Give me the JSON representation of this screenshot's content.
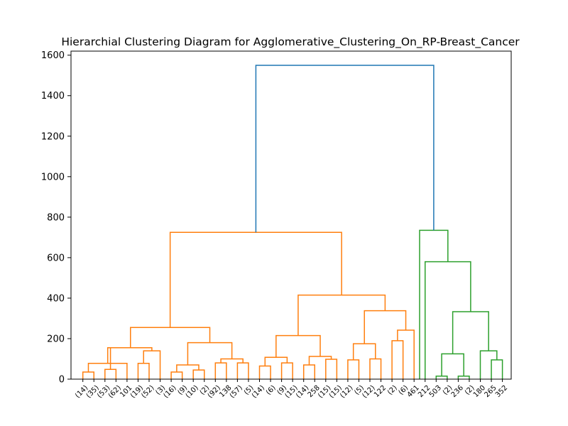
{
  "chart_data": {
    "type": "dendrogram",
    "title": "Hierarchial Clustering Diagram for Agglomerative_Clustering_On_RP-Breast_Cancer",
    "xlabel": "",
    "ylabel": "",
    "ylim": [
      0,
      1620
    ],
    "yticks": [
      0,
      200,
      400,
      600,
      800,
      1000,
      1200,
      1400,
      1600
    ],
    "grid": false,
    "colors": {
      "orange": "#ff7f0e",
      "green": "#2ca02c",
      "blue": "#1f77b4"
    },
    "leaves": [
      "(14)",
      "(35)",
      "(53)",
      "(62)",
      "101",
      "(19)",
      "(52)",
      "(3)",
      "(16)",
      "(9)",
      "(10)",
      "(2)",
      "(92)",
      "138",
      "(57)",
      "(5)",
      "(14)",
      "(6)",
      "(9)",
      "(15)",
      "(14)",
      "258",
      "(15)",
      "(15)",
      "(12)",
      "(5)",
      "(12)",
      "122",
      "(2)",
      "(6)",
      "461",
      "212",
      "503",
      "(2)",
      "236",
      "(2)",
      "180",
      "265",
      "352"
    ],
    "links": [
      {
        "left": 0,
        "right": 1,
        "height": 35,
        "color": "orange"
      },
      {
        "left": 2,
        "right": 3,
        "height": 48,
        "color": "orange"
      },
      {
        "left": "n0",
        "right": 4,
        "height": 78,
        "color": "orange"
      },
      {
        "left": "n2",
        "right": "n1",
        "height": 155,
        "color": "orange"
      },
      {
        "left": 5,
        "right": 6,
        "height": 78,
        "color": "orange"
      },
      {
        "left": 7,
        "right": "n4",
        "height": 140,
        "color": "orange"
      },
      {
        "left": "n3",
        "right": "n5",
        "height": 155,
        "color": "orange"
      },
      {
        "left": 8,
        "right": 9,
        "height": 35,
        "color": "orange"
      },
      {
        "left": 10,
        "right": 11,
        "height": 45,
        "color": "orange"
      },
      {
        "left": "n7",
        "right": "n8",
        "height": 70,
        "color": "orange"
      },
      {
        "left": 12,
        "right": 13,
        "height": 80,
        "color": "orange"
      },
      {
        "left": 14,
        "right": 15,
        "height": 80,
        "color": "orange"
      },
      {
        "left": "n10",
        "right": "n11",
        "height": 100,
        "color": "orange"
      },
      {
        "left": "n9",
        "right": "n12",
        "height": 180,
        "color": "orange"
      },
      {
        "left": "n6",
        "right": "n13",
        "height": 255,
        "color": "orange"
      },
      {
        "left": 16,
        "right": 17,
        "height": 65,
        "color": "orange"
      },
      {
        "left": 18,
        "right": 19,
        "height": 80,
        "color": "orange"
      },
      {
        "left": "n15",
        "right": "n16",
        "height": 108,
        "color": "orange"
      },
      {
        "left": 20,
        "right": 21,
        "height": 70,
        "color": "orange"
      },
      {
        "left": 22,
        "right": 23,
        "height": 98,
        "color": "orange"
      },
      {
        "left": "n18",
        "right": "n19",
        "height": 112,
        "color": "orange"
      },
      {
        "left": "n17",
        "right": "n20",
        "height": 215,
        "color": "orange"
      },
      {
        "left": 24,
        "right": 25,
        "height": 95,
        "color": "orange"
      },
      {
        "left": 26,
        "right": 27,
        "height": 100,
        "color": "orange"
      },
      {
        "left": "n22",
        "right": "n23",
        "height": 175,
        "color": "orange"
      },
      {
        "left": 28,
        "right": 29,
        "height": 190,
        "color": "orange"
      },
      {
        "left": 30,
        "right": "n25",
        "height": 242,
        "color": "orange"
      },
      {
        "left": "n24",
        "right": "n26",
        "height": 338,
        "color": "orange"
      },
      {
        "left": "n21",
        "right": "n27",
        "height": 415,
        "color": "orange"
      },
      {
        "left": "n14",
        "right": "n28",
        "height": 725,
        "color": "orange"
      },
      {
        "left": 32,
        "right": 33,
        "height": 15,
        "color": "green"
      },
      {
        "left": 34,
        "right": 35,
        "height": 15,
        "color": "green"
      },
      {
        "left": "n30",
        "right": "n31",
        "height": 125,
        "color": "green"
      },
      {
        "left": 37,
        "right": 38,
        "height": 95,
        "color": "green"
      },
      {
        "left": 36,
        "right": "n33",
        "height": 140,
        "color": "green"
      },
      {
        "left": "n32",
        "right": "n34",
        "height": 333,
        "color": "green"
      },
      {
        "left": 31,
        "right": "n35",
        "height": 580,
        "color": "green"
      },
      {
        "left": 30.5,
        "right": "n36",
        "height": 735,
        "color": "green"
      },
      {
        "left": "n29",
        "right": "n37",
        "height": 1550,
        "color": "blue"
      }
    ]
  }
}
